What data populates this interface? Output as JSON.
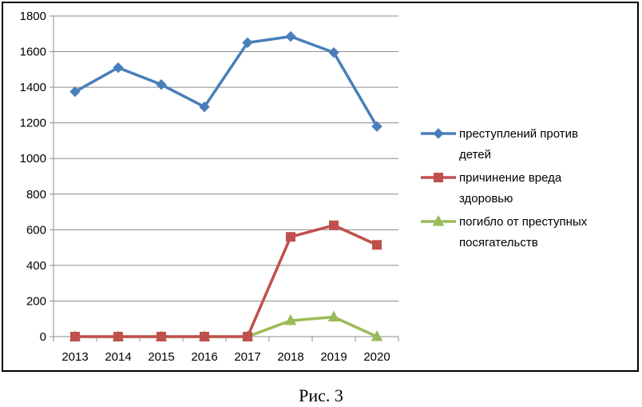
{
  "chart_data": {
    "type": "line",
    "title": "",
    "xlabel": "",
    "ylabel": "",
    "categories": [
      "2013",
      "2014",
      "2015",
      "2016",
      "2017",
      "2018",
      "2019",
      "2020"
    ],
    "ylim": [
      0,
      1800
    ],
    "yticks": [
      0,
      200,
      400,
      600,
      800,
      1000,
      1200,
      1400,
      1600,
      1800
    ],
    "grid": "horizontal",
    "legend": "right",
    "series": [
      {
        "name": "преступлений против детей",
        "values": [
          1375,
          1510,
          1415,
          1290,
          1650,
          1685,
          1595,
          1180
        ],
        "color": "#4a7ebb",
        "marker": "diamond"
      },
      {
        "name": "причинение вреда здоровью",
        "values": [
          0,
          0,
          0,
          0,
          0,
          560,
          625,
          515
        ],
        "color": "#c0504d",
        "marker": "square"
      },
      {
        "name": "погибло от преступных посягательств",
        "values": [
          0,
          0,
          0,
          0,
          0,
          90,
          110,
          0
        ],
        "color": "#9bbb59",
        "marker": "triangle"
      }
    ]
  },
  "caption": "Рис. 3"
}
